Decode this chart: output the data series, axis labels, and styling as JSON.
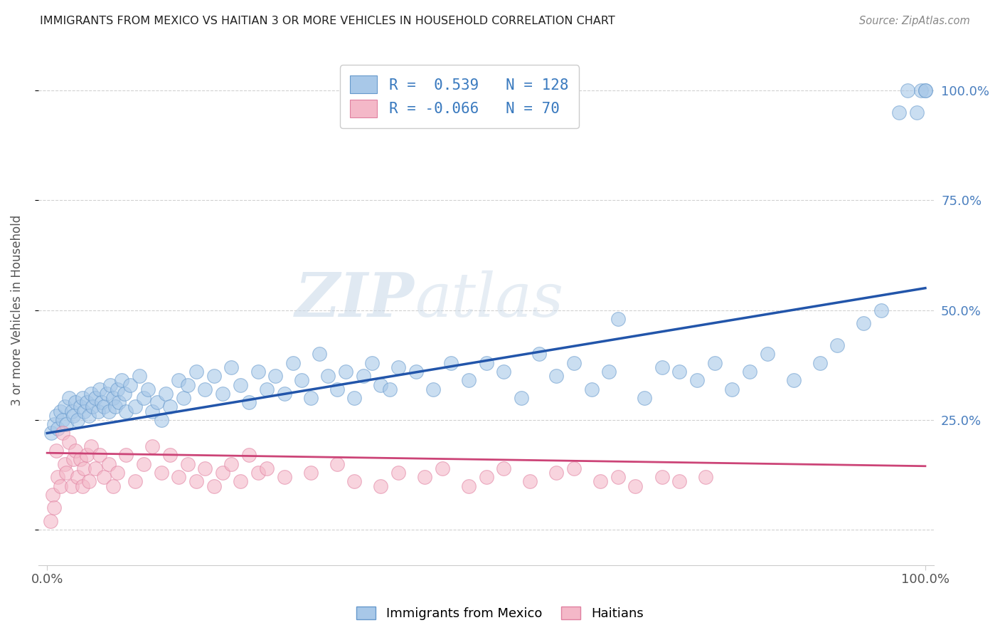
{
  "title": "IMMIGRANTS FROM MEXICO VS HAITIAN 3 OR MORE VEHICLES IN HOUSEHOLD CORRELATION CHART",
  "source": "Source: ZipAtlas.com",
  "ylabel": "3 or more Vehicles in Household",
  "watermark_zip": "ZIP",
  "watermark_atlas": "atlas",
  "mexico_color": "#a8c8e8",
  "mexico_edge": "#6699cc",
  "haitian_color": "#f4b8c8",
  "haitian_edge": "#e080a0",
  "background_color": "#ffffff",
  "grid_color": "#cccccc",
  "title_color": "#333333",
  "axis_label_color": "#555555",
  "right_axis_color": "#4a7fbf",
  "legend_label1": "R =  0.539   N = 128",
  "legend_label2": "R = -0.066   N = 70",
  "mexico_trendline_y0": 22,
  "mexico_trendline_y1": 55,
  "haitian_trendline_y0": 17.5,
  "haitian_trendline_y1": 14.5,
  "mexico_scatter_x": [
    0.5,
    0.8,
    1.0,
    1.2,
    1.5,
    1.8,
    2.0,
    2.2,
    2.5,
    2.8,
    3.0,
    3.2,
    3.5,
    3.8,
    4.0,
    4.2,
    4.5,
    4.8,
    5.0,
    5.2,
    5.5,
    5.8,
    6.0,
    6.2,
    6.5,
    6.8,
    7.0,
    7.2,
    7.5,
    7.8,
    8.0,
    8.2,
    8.5,
    8.8,
    9.0,
    9.5,
    10.0,
    10.5,
    11.0,
    11.5,
    12.0,
    12.5,
    13.0,
    13.5,
    14.0,
    15.0,
    15.5,
    16.0,
    17.0,
    18.0,
    19.0,
    20.0,
    21.0,
    22.0,
    23.0,
    24.0,
    25.0,
    26.0,
    27.0,
    28.0,
    29.0,
    30.0,
    31.0,
    32.0,
    33.0,
    34.0,
    35.0,
    36.0,
    37.0,
    38.0,
    39.0,
    40.0,
    42.0,
    44.0,
    46.0,
    48.0,
    50.0,
    52.0,
    54.0,
    56.0,
    58.0,
    60.0,
    62.0,
    64.0,
    65.0,
    68.0,
    70.0,
    72.0,
    74.0,
    76.0,
    78.0,
    80.0,
    82.0,
    85.0,
    88.0,
    90.0,
    93.0,
    95.0,
    97.0,
    98.0,
    99.0,
    99.5,
    100.0,
    100.0
  ],
  "mexico_scatter_y": [
    22,
    24,
    26,
    23,
    27,
    25,
    28,
    24,
    30,
    27,
    26,
    29,
    25,
    28,
    30,
    27,
    29,
    26,
    31,
    28,
    30,
    27,
    32,
    29,
    28,
    31,
    27,
    33,
    30,
    28,
    32,
    29,
    34,
    31,
    27,
    33,
    28,
    35,
    30,
    32,
    27,
    29,
    25,
    31,
    28,
    34,
    30,
    33,
    36,
    32,
    35,
    31,
    37,
    33,
    29,
    36,
    32,
    35,
    31,
    38,
    34,
    30,
    40,
    35,
    32,
    36,
    30,
    35,
    38,
    33,
    32,
    37,
    36,
    32,
    38,
    34,
    38,
    36,
    30,
    40,
    35,
    38,
    32,
    36,
    48,
    30,
    37,
    36,
    34,
    38,
    32,
    36,
    40,
    34,
    38,
    42,
    47,
    50,
    95,
    100,
    95,
    100,
    100,
    100
  ],
  "haitian_scatter_x": [
    0.4,
    0.6,
    0.8,
    1.0,
    1.2,
    1.5,
    1.8,
    2.0,
    2.2,
    2.5,
    2.8,
    3.0,
    3.2,
    3.5,
    3.8,
    4.0,
    4.2,
    4.5,
    4.8,
    5.0,
    5.5,
    6.0,
    6.5,
    7.0,
    7.5,
    8.0,
    9.0,
    10.0,
    11.0,
    12.0,
    13.0,
    14.0,
    15.0,
    16.0,
    17.0,
    18.0,
    19.0,
    20.0,
    21.0,
    22.0,
    23.0,
    24.0,
    25.0,
    27.0,
    30.0,
    33.0,
    35.0,
    38.0,
    40.0,
    43.0,
    45.0,
    48.0,
    50.0,
    52.0,
    55.0,
    58.0,
    60.0,
    63.0,
    65.0,
    67.0,
    70.0,
    72.0,
    75.0
  ],
  "haitian_scatter_y": [
    2,
    8,
    5,
    18,
    12,
    10,
    22,
    15,
    13,
    20,
    10,
    16,
    18,
    12,
    16,
    10,
    14,
    17,
    11,
    19,
    14,
    17,
    12,
    15,
    10,
    13,
    17,
    11,
    15,
    19,
    13,
    17,
    12,
    15,
    11,
    14,
    10,
    13,
    15,
    11,
    17,
    13,
    14,
    12,
    13,
    15,
    11,
    10,
    13,
    12,
    14,
    10,
    12,
    14,
    11,
    13,
    14,
    11,
    12,
    10,
    12,
    11,
    12
  ],
  "xlim": [
    -1,
    101
  ],
  "ylim": [
    -8,
    108
  ]
}
